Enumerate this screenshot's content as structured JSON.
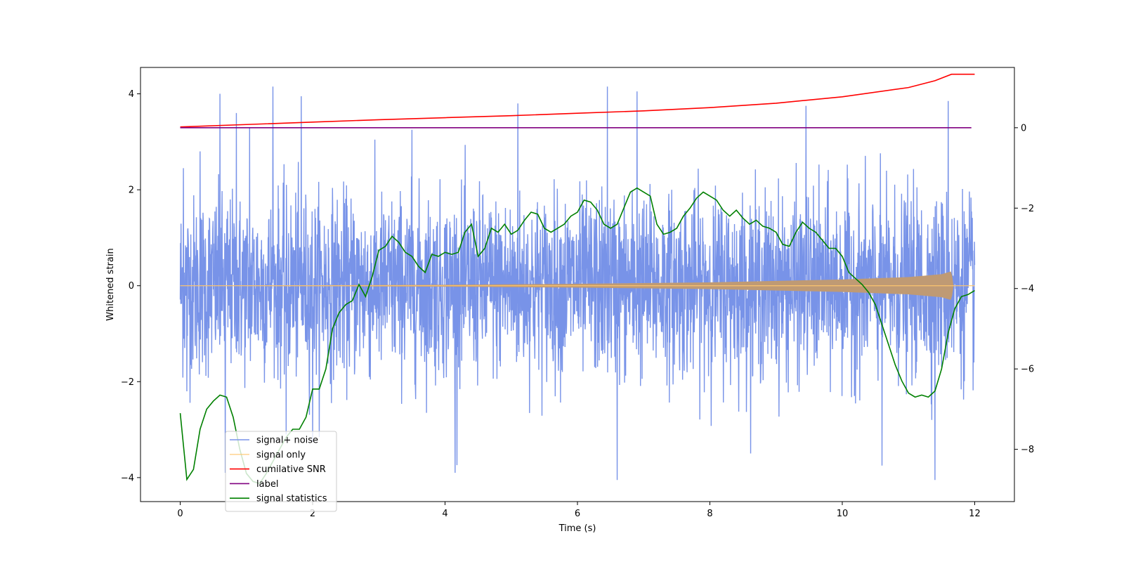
{
  "chart_data": {
    "type": "line",
    "title": "",
    "xlabel": "Time (s)",
    "ylabel": "Whitened strain",
    "y2label": "",
    "xlim": [
      -0.6,
      12.6
    ],
    "ylim": [
      -4.5,
      4.55
    ],
    "y2lim": [
      -9.3,
      1.5
    ],
    "xticks": [
      0,
      2,
      4,
      6,
      8,
      10,
      12
    ],
    "yticks": [
      -4,
      -2,
      0,
      2,
      4
    ],
    "y2ticks": [
      -8,
      -6,
      -4,
      -2,
      0
    ],
    "grid": false,
    "legend_position": "lower-left",
    "series": [
      {
        "name": "signal+ noise",
        "color": "#7893e8",
        "axis": "left",
        "kind": "noise",
        "x_range": [
          0,
          12
        ],
        "sample_interval": 0.004,
        "typical_amplitude": 1.5,
        "peak_range": [
          -4.05,
          4.15
        ],
        "values": [
          [
            0.05,
            2.45
          ],
          [
            0.1,
            -2.2
          ],
          [
            0.3,
            2.8
          ],
          [
            0.6,
            4.0
          ],
          [
            0.68,
            -3.9
          ],
          [
            0.85,
            3.6
          ],
          [
            1.05,
            3.3
          ],
          [
            1.4,
            4.15
          ],
          [
            1.6,
            -3.1
          ],
          [
            1.83,
            3.95
          ],
          [
            2.0,
            -3.25
          ],
          [
            3.5,
            3.25
          ],
          [
            4.15,
            -3.9
          ],
          [
            5.1,
            3.8
          ],
          [
            6.45,
            4.15
          ],
          [
            6.6,
            -4.05
          ],
          [
            6.9,
            4.05
          ],
          [
            9.45,
            3.75
          ],
          [
            10.6,
            -3.75
          ],
          [
            11.4,
            -4.05
          ],
          [
            11.6,
            3.85
          ]
        ]
      },
      {
        "name": "signal only",
        "color": "#ffc66e",
        "axis": "left",
        "kind": "chirp",
        "values": [
          [
            0,
            0.0
          ],
          [
            2,
            0.01
          ],
          [
            4,
            0.02
          ],
          [
            6,
            0.04
          ],
          [
            8,
            0.07
          ],
          [
            9,
            0.1
          ],
          [
            10,
            0.13
          ],
          [
            11,
            0.18
          ],
          [
            11.5,
            0.24
          ],
          [
            11.65,
            0.3
          ],
          [
            11.68,
            0.0
          ],
          [
            12,
            0.0
          ]
        ]
      },
      {
        "name": "cumilative SNR",
        "color": "#ff0000",
        "axis": "right",
        "values": [
          [
            0,
            0.02
          ],
          [
            1,
            0.08
          ],
          [
            2,
            0.14
          ],
          [
            3,
            0.2
          ],
          [
            4,
            0.25
          ],
          [
            5,
            0.3
          ],
          [
            6,
            0.36
          ],
          [
            7,
            0.42
          ],
          [
            8,
            0.5
          ],
          [
            9,
            0.61
          ],
          [
            10,
            0.77
          ],
          [
            11,
            1.0
          ],
          [
            11.4,
            1.17
          ],
          [
            11.65,
            1.33
          ],
          [
            12,
            1.33
          ]
        ]
      },
      {
        "name": "label",
        "color": "#800080",
        "axis": "right",
        "values": [
          [
            0,
            0.0
          ],
          [
            11.95,
            0.0
          ]
        ]
      },
      {
        "name": "signal statistics",
        "color": "#008000",
        "axis": "right",
        "values": [
          [
            0.0,
            -7.1
          ],
          [
            0.1,
            -8.75
          ],
          [
            0.2,
            -8.5
          ],
          [
            0.3,
            -7.5
          ],
          [
            0.4,
            -7.0
          ],
          [
            0.5,
            -6.8
          ],
          [
            0.6,
            -6.65
          ],
          [
            0.7,
            -6.7
          ],
          [
            0.8,
            -7.2
          ],
          [
            0.9,
            -8.0
          ],
          [
            1.0,
            -8.6
          ],
          [
            1.1,
            -8.8
          ],
          [
            1.2,
            -8.85
          ],
          [
            1.3,
            -8.6
          ],
          [
            1.4,
            -8.3
          ],
          [
            1.5,
            -8.0
          ],
          [
            1.6,
            -7.7
          ],
          [
            1.7,
            -7.5
          ],
          [
            1.8,
            -7.5
          ],
          [
            1.9,
            -7.2
          ],
          [
            2.0,
            -6.5
          ],
          [
            2.1,
            -6.5
          ],
          [
            2.2,
            -6.0
          ],
          [
            2.3,
            -5.0
          ],
          [
            2.4,
            -4.6
          ],
          [
            2.5,
            -4.4
          ],
          [
            2.6,
            -4.3
          ],
          [
            2.7,
            -3.9
          ],
          [
            2.8,
            -4.2
          ],
          [
            2.9,
            -3.7
          ],
          [
            3.0,
            -3.05
          ],
          [
            3.1,
            -2.95
          ],
          [
            3.2,
            -2.7
          ],
          [
            3.3,
            -2.85
          ],
          [
            3.4,
            -3.1
          ],
          [
            3.5,
            -3.2
          ],
          [
            3.6,
            -3.45
          ],
          [
            3.7,
            -3.6
          ],
          [
            3.8,
            -3.15
          ],
          [
            3.9,
            -3.2
          ],
          [
            4.0,
            -3.1
          ],
          [
            4.1,
            -3.15
          ],
          [
            4.2,
            -3.1
          ],
          [
            4.3,
            -2.6
          ],
          [
            4.4,
            -2.4
          ],
          [
            4.5,
            -3.2
          ],
          [
            4.6,
            -3.0
          ],
          [
            4.7,
            -2.5
          ],
          [
            4.8,
            -2.6
          ],
          [
            4.9,
            -2.4
          ],
          [
            5.0,
            -2.65
          ],
          [
            5.1,
            -2.55
          ],
          [
            5.2,
            -2.3
          ],
          [
            5.3,
            -2.1
          ],
          [
            5.4,
            -2.15
          ],
          [
            5.5,
            -2.5
          ],
          [
            5.6,
            -2.6
          ],
          [
            5.7,
            -2.5
          ],
          [
            5.8,
            -2.4
          ],
          [
            5.9,
            -2.2
          ],
          [
            6.0,
            -2.1
          ],
          [
            6.1,
            -1.8
          ],
          [
            6.2,
            -1.85
          ],
          [
            6.3,
            -2.05
          ],
          [
            6.4,
            -2.4
          ],
          [
            6.5,
            -2.5
          ],
          [
            6.6,
            -2.4
          ],
          [
            6.7,
            -2.0
          ],
          [
            6.8,
            -1.6
          ],
          [
            6.9,
            -1.5
          ],
          [
            7.0,
            -1.6
          ],
          [
            7.1,
            -1.7
          ],
          [
            7.2,
            -2.4
          ],
          [
            7.3,
            -2.65
          ],
          [
            7.4,
            -2.6
          ],
          [
            7.5,
            -2.5
          ],
          [
            7.6,
            -2.2
          ],
          [
            7.7,
            -2.0
          ],
          [
            7.8,
            -1.75
          ],
          [
            7.9,
            -1.6
          ],
          [
            8.0,
            -1.7
          ],
          [
            8.1,
            -1.8
          ],
          [
            8.2,
            -2.05
          ],
          [
            8.3,
            -2.2
          ],
          [
            8.4,
            -2.05
          ],
          [
            8.5,
            -2.25
          ],
          [
            8.6,
            -2.4
          ],
          [
            8.7,
            -2.3
          ],
          [
            8.8,
            -2.45
          ],
          [
            8.9,
            -2.5
          ],
          [
            9.0,
            -2.6
          ],
          [
            9.1,
            -2.9
          ],
          [
            9.2,
            -2.95
          ],
          [
            9.3,
            -2.6
          ],
          [
            9.4,
            -2.35
          ],
          [
            9.5,
            -2.5
          ],
          [
            9.6,
            -2.6
          ],
          [
            9.7,
            -2.8
          ],
          [
            9.8,
            -3.0
          ],
          [
            9.9,
            -3.0
          ],
          [
            10.0,
            -3.2
          ],
          [
            10.1,
            -3.6
          ],
          [
            10.2,
            -3.75
          ],
          [
            10.3,
            -3.9
          ],
          [
            10.4,
            -4.1
          ],
          [
            10.5,
            -4.4
          ],
          [
            10.6,
            -4.9
          ],
          [
            10.7,
            -5.4
          ],
          [
            10.8,
            -5.9
          ],
          [
            10.9,
            -6.3
          ],
          [
            11.0,
            -6.6
          ],
          [
            11.1,
            -6.7
          ],
          [
            11.2,
            -6.65
          ],
          [
            11.3,
            -6.7
          ],
          [
            11.4,
            -6.55
          ],
          [
            11.5,
            -6.0
          ],
          [
            11.6,
            -5.1
          ],
          [
            11.7,
            -4.5
          ],
          [
            11.8,
            -4.2
          ],
          [
            11.9,
            -4.15
          ],
          [
            12.0,
            -4.05
          ]
        ]
      }
    ]
  }
}
